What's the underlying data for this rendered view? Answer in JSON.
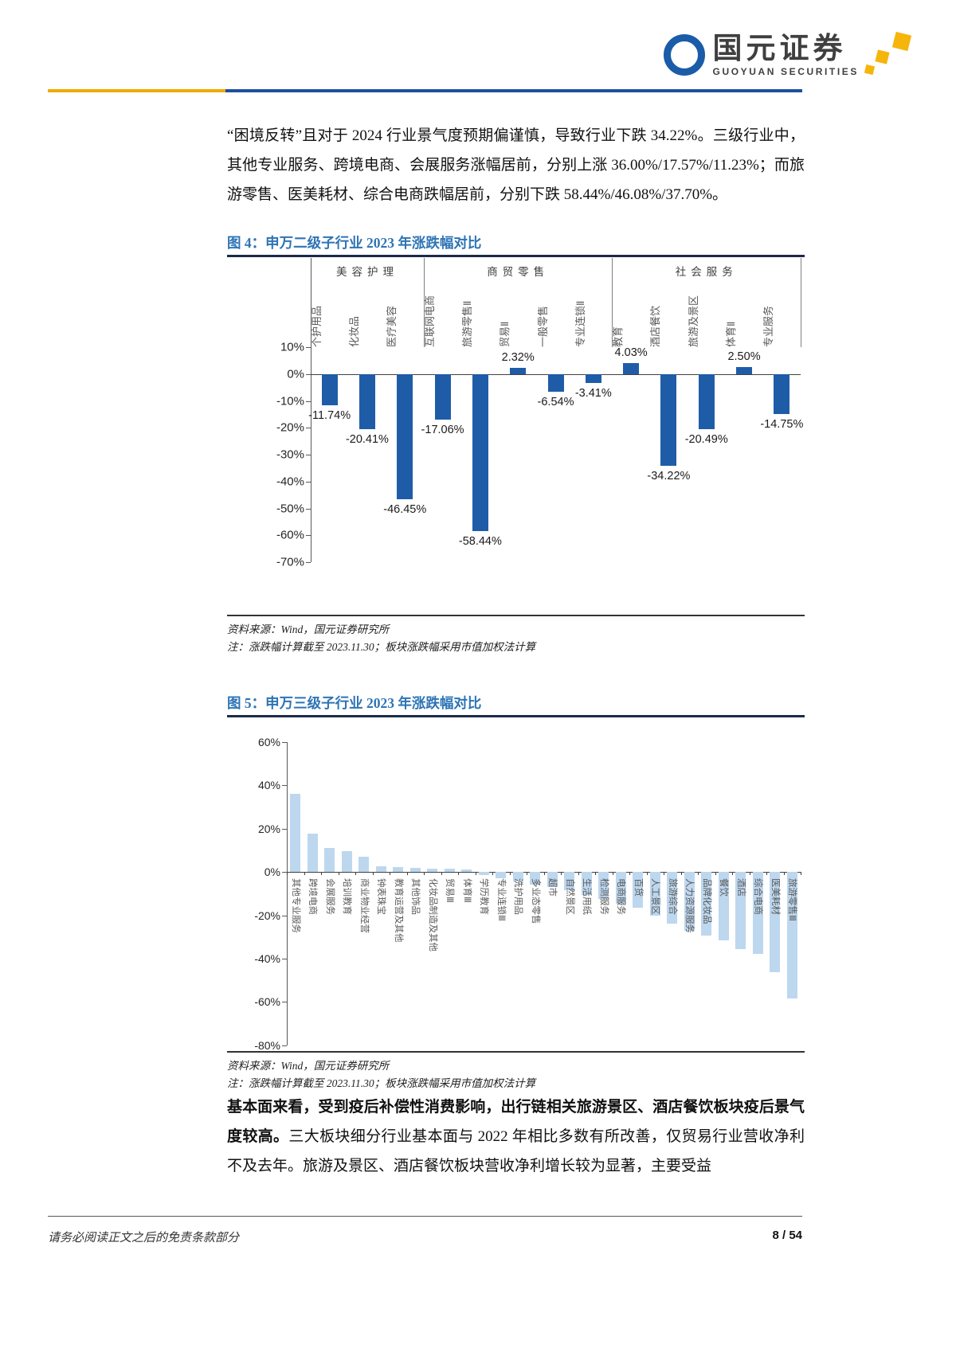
{
  "header": {
    "brand_cn": "国元证券",
    "brand_en": "GUOYUAN SECURITIES"
  },
  "body": {
    "paragraph1": "“困境反转”且对于 2024 行业景气度预期偏谨慎，导致行业下跌 34.22%。三级行业中，其他专业服务、跨境电商、会展服务涨幅居前，分别上涨 36.00%/17.57%/11.23%；而旅游零售、医美耗材、综合电商跌幅居前，分别下跌 58.44%/46.08%/37.70%。",
    "paragraph2_bold": "基本面来看，受到疫后补偿性消费影响，出行链相关旅游景区、酒店餐饮板块疫后景气度较高。",
    "paragraph2_rest": "三大板块细分行业基本面与 2022 年相比多数有所改善，仅贸易行业营收净利不及去年。旅游及景区、酒店餐饮板块营收净利增长较为显著，主要受益"
  },
  "figure4": {
    "title": "图 4：申万二级子行业 2023 年涨跌幅对比",
    "source": "资料来源：Wind，国元证券研究所",
    "note": "注：涨跌幅计算截至 2023.11.30；板块涨跌幅采用市值加权法计算"
  },
  "figure5": {
    "title": "图 5：申万三级子行业 2023 年涨跌幅对比",
    "source": "资料来源：Wind，国元证券研究所",
    "note": "注：涨跌幅计算截至 2023.11.30；板块涨跌幅采用市值加权法计算"
  },
  "footer": {
    "disclaimer": "请务必阅读正文之后的免责条款部分",
    "page": "8 / 54"
  },
  "colors": {
    "accent_blue": "#2E74B5",
    "rule_gold": "#F2A900",
    "rule_blue": "#1F4E9F",
    "bar_dark_blue": "#1F5CA8",
    "bar_light_blue": "#BDD7EE",
    "logo_gold": "#F5B50A",
    "logo_blue": "#1A5CA8"
  },
  "chart_data": [
    {
      "type": "bar",
      "title": "申万二级子行业2023年涨跌幅对比",
      "groups": [
        {
          "name": "美容护理",
          "categories": [
            "个护用品",
            "化妆品",
            "医疗美容"
          ]
        },
        {
          "name": "商贸零售",
          "categories": [
            "互联网电商",
            "旅游零售Ⅱ",
            "贸易Ⅱ",
            "一般零售",
            "专业连锁Ⅱ"
          ]
        },
        {
          "name": "社会服务",
          "categories": [
            "教育",
            "酒店餐饮",
            "旅游及景区",
            "体育Ⅱ",
            "专业服务"
          ]
        }
      ],
      "categories": [
        "个护用品",
        "化妆品",
        "医疗美容",
        "互联网电商",
        "旅游零售Ⅱ",
        "贸易Ⅱ",
        "一般零售",
        "专业连锁Ⅱ",
        "教育",
        "酒店餐饮",
        "旅游及景区",
        "体育Ⅱ",
        "专业服务"
      ],
      "values": [
        -11.74,
        -20.41,
        -46.45,
        -17.06,
        -58.44,
        2.32,
        -6.54,
        -3.41,
        4.03,
        -34.22,
        -20.49,
        2.5,
        -14.75
      ],
      "data_labels": [
        "-11.74%",
        "-20.41%",
        "-46.45%",
        "-17.06%",
        "-58.44%",
        "2.32%",
        "-6.54%",
        "-3.41%",
        "4.03%",
        "-34.22%",
        "-20.49%",
        "2.50%",
        "-14.75%"
      ],
      "ylim": [
        -70,
        10
      ],
      "yticks": [
        10,
        0,
        -10,
        -20,
        -30,
        -40,
        -50,
        -60,
        -70
      ],
      "ytick_labels": [
        "10%",
        "0%",
        "-10%",
        "-20%",
        "-30%",
        "-40%",
        "-50%",
        "-60%",
        "-70%"
      ],
      "bar_color": "#1F5CA8",
      "grid": false,
      "legend": "none"
    },
    {
      "type": "bar",
      "title": "申万三级子行业2023年涨跌幅对比",
      "categories": [
        "其他专业服务",
        "跨境电商",
        "会展服务",
        "培训教育",
        "商业物业经营",
        "钟表珠宝",
        "教育运营及其他",
        "其他饰品",
        "化妆品制造及其他",
        "贸易Ⅲ",
        "体育Ⅲ",
        "学历教育",
        "专业连锁Ⅲ",
        "洗护用品",
        "多业态零售",
        "超市",
        "自然景区",
        "生活用纸",
        "检测服务",
        "电商服务",
        "百货",
        "人工景区",
        "旅游综合",
        "人力资源服务",
        "品牌化妆品",
        "餐饮",
        "酒店",
        "综合电商",
        "医美耗材",
        "旅游零售Ⅲ"
      ],
      "values": [
        36.0,
        17.57,
        11.23,
        9.8,
        6.9,
        2.8,
        2.3,
        2.0,
        1.6,
        1.4,
        1.2,
        -1.5,
        -3.0,
        -4.5,
        -5.8,
        -7.0,
        -8.5,
        -10.5,
        -12.5,
        -14.5,
        -16.5,
        -20.0,
        -24.0,
        -27.0,
        -29.5,
        -31.5,
        -35.5,
        -37.7,
        -46.08,
        -58.44
      ],
      "ylim": [
        -80,
        60
      ],
      "yticks": [
        60,
        40,
        20,
        0,
        -20,
        -40,
        -60,
        -80
      ],
      "ytick_labels": [
        "60%",
        "40%",
        "20%",
        "0%",
        "-20%",
        "-40%",
        "-60%",
        "-80%"
      ],
      "bar_color": "#BDD7EE",
      "grid": false,
      "legend": "none"
    }
  ]
}
